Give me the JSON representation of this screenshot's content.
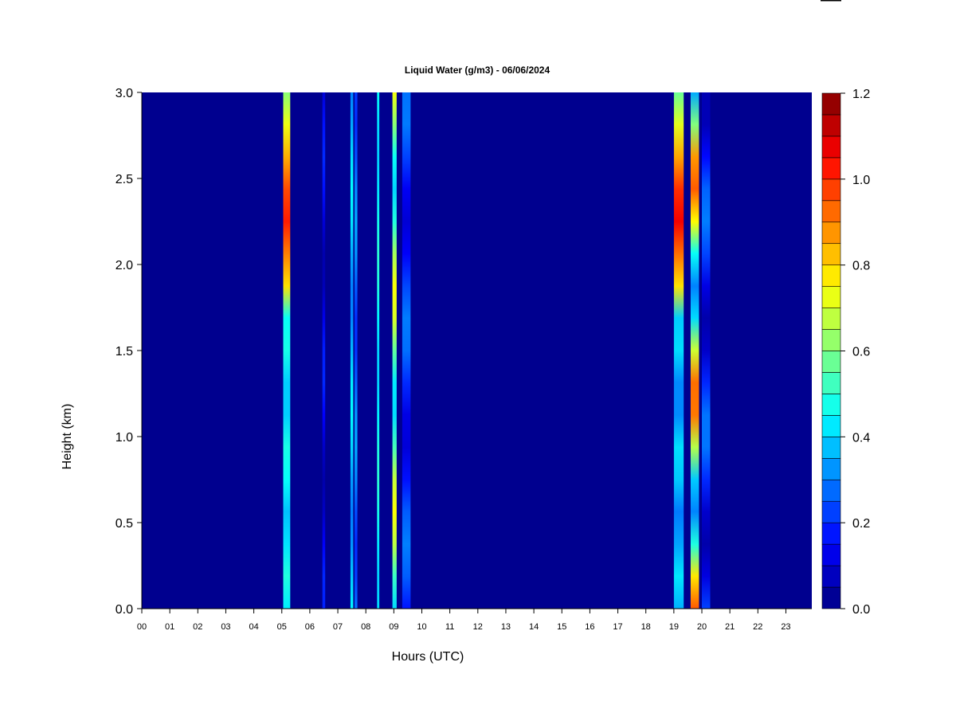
{
  "chart_data": {
    "type": "heatmap",
    "title": "Liquid Water (g/m3) - 06/06/2024",
    "xlabel": "Hours (UTC)",
    "ylabel": "Height (km)",
    "xlim": [
      0,
      24
    ],
    "ylim": [
      0.0,
      3.0
    ],
    "x_ticks": [
      "00",
      "01",
      "02",
      "03",
      "04",
      "05",
      "06",
      "07",
      "08",
      "09",
      "10",
      "11",
      "12",
      "13",
      "14",
      "15",
      "16",
      "17",
      "18",
      "19",
      "20",
      "21",
      "22",
      "23"
    ],
    "y_ticks": [
      "0.0",
      "0.5",
      "1.0",
      "1.5",
      "2.0",
      "2.5",
      "3.0"
    ],
    "colorbar": {
      "min": 0.0,
      "max": 1.2,
      "step": 0.05,
      "tick_labels": [
        "0.0",
        "0.2",
        "0.4",
        "0.6",
        "0.8",
        "1.0",
        "1.2"
      ],
      "colormap": "jet"
    },
    "background_value": 0.0,
    "bands": [
      {
        "start_hour": 5.05,
        "end_hour": 5.3,
        "value_range": [
          0.3,
          1.05
        ],
        "peak_height_km": 2.3
      },
      {
        "start_hour": 6.45,
        "end_hour": 6.55,
        "value_range": [
          0.05,
          0.2
        ]
      },
      {
        "start_hour": 7.45,
        "end_hour": 7.55,
        "value_range": [
          0.3,
          0.45
        ]
      },
      {
        "start_hour": 7.6,
        "end_hour": 7.7,
        "value_range": [
          0.2,
          0.35
        ]
      },
      {
        "start_hour": 8.4,
        "end_hour": 8.48,
        "value_range": [
          0.4,
          0.5
        ]
      },
      {
        "start_hour": 8.95,
        "end_hour": 9.1,
        "value_range": [
          0.4,
          0.75
        ]
      },
      {
        "start_hour": 9.3,
        "end_hour": 9.6,
        "value_range": [
          0.1,
          0.3
        ]
      },
      {
        "start_hour": 19.0,
        "end_hour": 19.35,
        "value_range": [
          0.2,
          1.1
        ],
        "peak_height_km": 2.3
      },
      {
        "start_hour": 19.6,
        "end_hour": 19.9,
        "value_range": [
          0.3,
          0.95
        ]
      },
      {
        "start_hour": 20.0,
        "end_hour": 20.3,
        "value_range": [
          0.05,
          0.3
        ]
      }
    ]
  }
}
